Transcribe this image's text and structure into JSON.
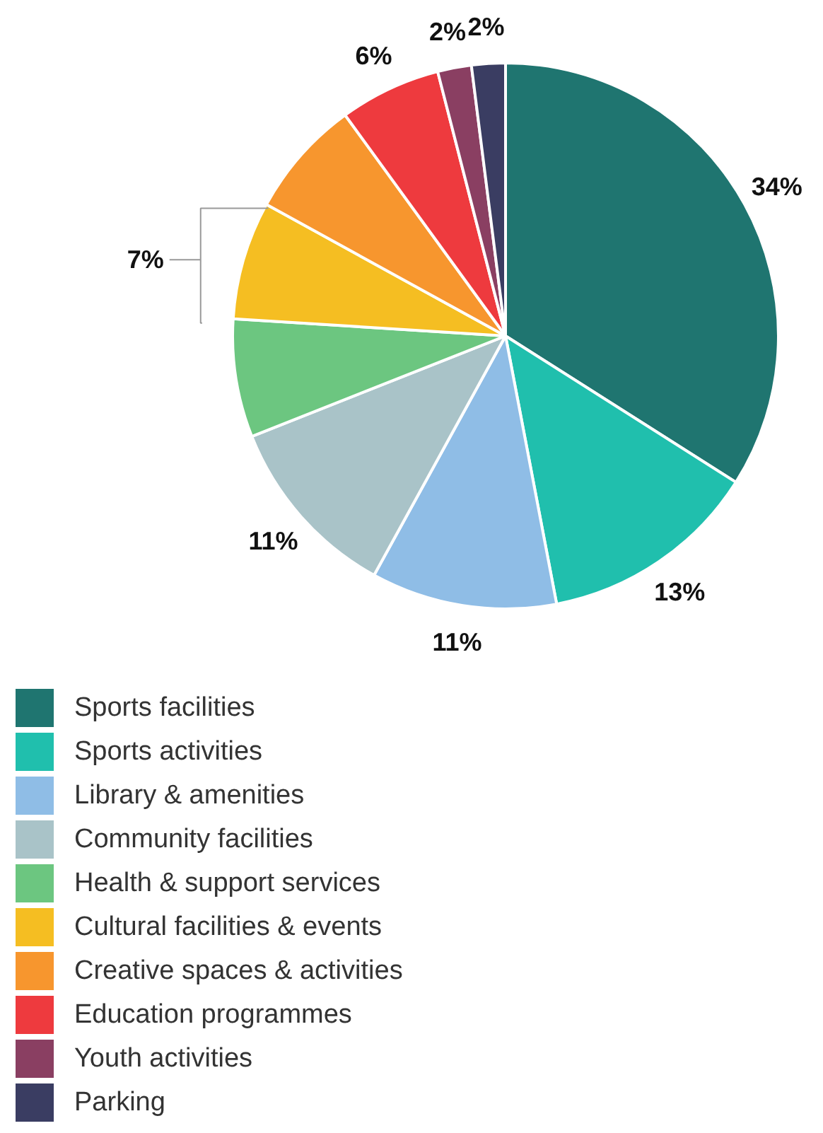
{
  "chart_data": {
    "type": "pie",
    "categories": [
      "Sports facilities",
      "Sports activities",
      "Library  & amenities",
      "Community facilities",
      "Health & support services",
      "Cultural facilities & events",
      "Creative spaces & activities",
      "Education programmes",
      "Youth activities",
      "Parking"
    ],
    "values": [
      34,
      13,
      11,
      11,
      7,
      7,
      7,
      6,
      2,
      2
    ],
    "colors": [
      "#1f7570",
      "#20bfad",
      "#8fbde6",
      "#a9c3c8",
      "#6cc680",
      "#f5be22",
      "#f7962e",
      "#ee3a3e",
      "#8a3f62",
      "#3a3d62"
    ],
    "value_labels": [
      "34%",
      "13%",
      "11%",
      "11%",
      null,
      "7%",
      null,
      "6%",
      "2%",
      "2%"
    ],
    "legend": "bottom"
  }
}
